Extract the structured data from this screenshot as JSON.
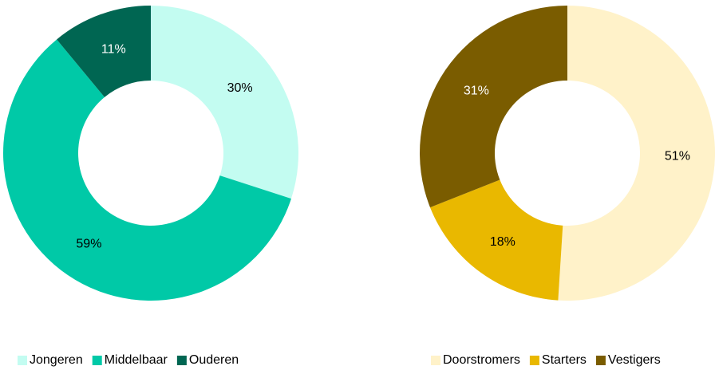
{
  "chart_data": [
    {
      "type": "donut",
      "categories": [
        "Jongeren",
        "Middelbaar",
        "Ouderen"
      ],
      "values": [
        30,
        59,
        11
      ],
      "value_labels": [
        "30%",
        "59%",
        "11%"
      ],
      "colors": [
        "#c3fcf1",
        "#00c9a7",
        "#006652"
      ],
      "legend": "bottom-left"
    },
    {
      "type": "donut",
      "categories": [
        "Doorstromers",
        "Starters",
        "Vestigers"
      ],
      "values": [
        51,
        18,
        31
      ],
      "value_labels": [
        "51%",
        "18%",
        "31%"
      ],
      "colors": [
        "#fff2c9",
        "#e9b800",
        "#7a5c00"
      ],
      "legend": "bottom-left"
    }
  ]
}
